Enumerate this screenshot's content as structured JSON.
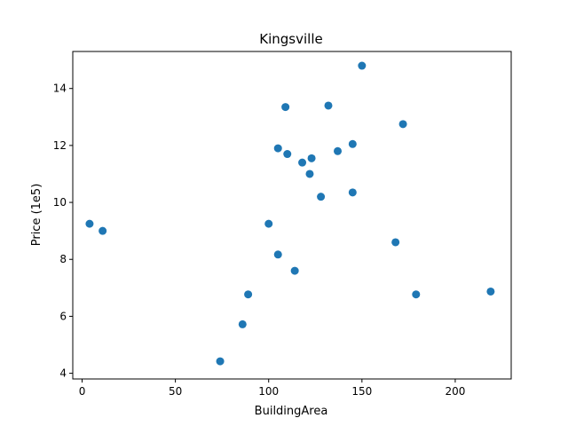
{
  "chart_data": {
    "type": "scatter",
    "title": "Kingsville",
    "xlabel": "BuildingArea",
    "ylabel": "Price (1e5)",
    "xlim": [
      -5,
      230
    ],
    "ylim": [
      3.8,
      15.3
    ],
    "xticks": [
      0,
      50,
      100,
      150,
      200
    ],
    "yticks": [
      4,
      6,
      8,
      10,
      12,
      14
    ],
    "grid": false,
    "marker_color": "#1f77b4",
    "points": [
      {
        "x": 4,
        "y": 9.25
      },
      {
        "x": 11,
        "y": 9.0
      },
      {
        "x": 74,
        "y": 4.42
      },
      {
        "x": 86,
        "y": 5.72
      },
      {
        "x": 89,
        "y": 6.77
      },
      {
        "x": 100,
        "y": 9.25
      },
      {
        "x": 105,
        "y": 8.17
      },
      {
        "x": 105,
        "y": 11.9
      },
      {
        "x": 109,
        "y": 13.35
      },
      {
        "x": 110,
        "y": 11.7
      },
      {
        "x": 114,
        "y": 7.6
      },
      {
        "x": 118,
        "y": 11.4
      },
      {
        "x": 122,
        "y": 11.0
      },
      {
        "x": 123,
        "y": 11.55
      },
      {
        "x": 128,
        "y": 10.2
      },
      {
        "x": 132,
        "y": 13.4
      },
      {
        "x": 137,
        "y": 11.8
      },
      {
        "x": 145,
        "y": 12.05
      },
      {
        "x": 145,
        "y": 10.35
      },
      {
        "x": 150,
        "y": 14.8
      },
      {
        "x": 168,
        "y": 8.6
      },
      {
        "x": 172,
        "y": 12.75
      },
      {
        "x": 179,
        "y": 6.77
      },
      {
        "x": 219,
        "y": 6.87
      }
    ]
  }
}
